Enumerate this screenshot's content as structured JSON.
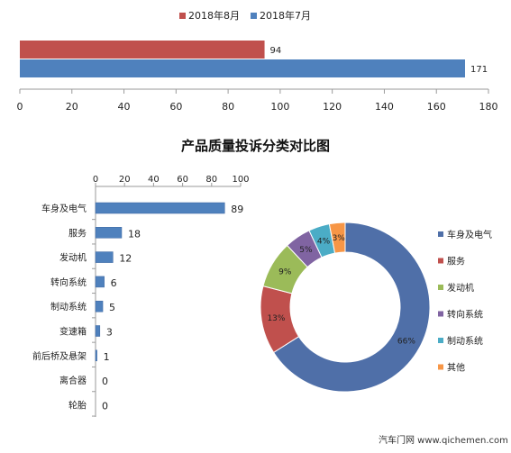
{
  "chart_data": [
    {
      "type": "bar",
      "orientation": "horizontal",
      "title": "",
      "series": [
        {
          "name": "2018年8月",
          "values": [
            94
          ]
        },
        {
          "name": "2018年7月",
          "values": [
            171
          ]
        }
      ],
      "xlim": [
        0,
        180
      ],
      "xticks": [
        0,
        20,
        40,
        60,
        80,
        100,
        120,
        140,
        160,
        180
      ],
      "legend": "top",
      "grid": false
    },
    {
      "type": "bar",
      "orientation": "horizontal",
      "title": "产品质量投诉分类对比图",
      "categories": [
        "车身及电气",
        "服务",
        "发动机",
        "转向系统",
        "制动系统",
        "变速箱",
        "前后桥及悬架",
        "离合器",
        "轮胎"
      ],
      "values": [
        89,
        18,
        12,
        6,
        5,
        3,
        1,
        0,
        0
      ],
      "xlim": [
        0,
        100
      ],
      "xticks": [
        0,
        20,
        40,
        60,
        80,
        100
      ],
      "grid": false
    },
    {
      "type": "pie",
      "donut": true,
      "slices": [
        {
          "label": "车身及电气",
          "value": 66,
          "text": "66%"
        },
        {
          "label": "服务",
          "value": 13,
          "text": "13%"
        },
        {
          "label": "发动机",
          "value": 9,
          "text": "9%"
        },
        {
          "label": "转向系统",
          "value": 5,
          "text": "5%"
        },
        {
          "label": "制动系统",
          "value": 4,
          "text": "4%"
        },
        {
          "label": "其他",
          "value": 3,
          "text": "3%"
        }
      ],
      "legend": "right"
    }
  ],
  "colors": {
    "aug": "#c0504d",
    "jul": "#4f81bd",
    "bar": "#4f81bd",
    "pie": [
      "#4f6fa8",
      "#c0504d",
      "#9bbb59",
      "#8064a2",
      "#4bacc6",
      "#f79646"
    ]
  },
  "watermark": "汽车门网 www.qichemen.com"
}
